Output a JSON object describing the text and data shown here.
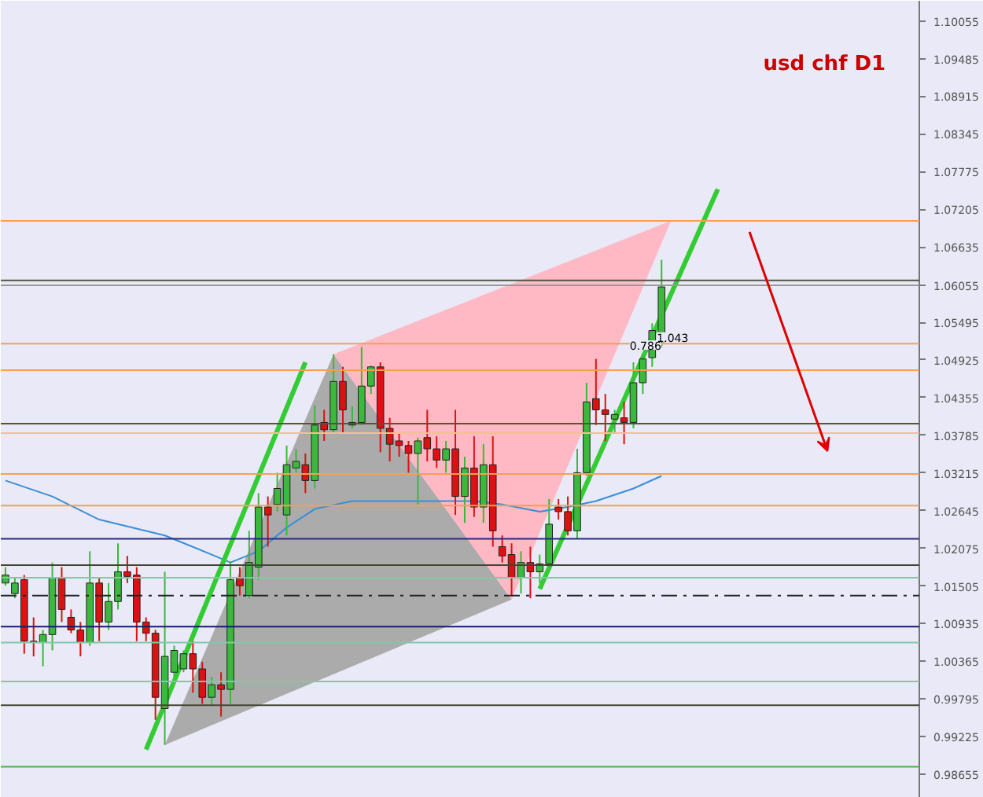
{
  "chart_data": {
    "type": "candlestick",
    "title": "usd chf D1",
    "categories": [
      null,
      null,
      null,
      null,
      null,
      null,
      null,
      null,
      null,
      null,
      null,
      null,
      null,
      null,
      null,
      null,
      null,
      null,
      null,
      null,
      null,
      null,
      null,
      null,
      null,
      null,
      null,
      null,
      null,
      null,
      null,
      null,
      null,
      null,
      null,
      null,
      null,
      null,
      null,
      null,
      null,
      null,
      null,
      null,
      null,
      null,
      null,
      null,
      null,
      null,
      null,
      null,
      null,
      null,
      null,
      null,
      null,
      null,
      null,
      null,
      null,
      null,
      null,
      null,
      null,
      null,
      null,
      null,
      null,
      null,
      null,
      null,
      null,
      null,
      null,
      null,
      null,
      null,
      null,
      null,
      null,
      null,
      null,
      null,
      null,
      null,
      null,
      null,
      null,
      null,
      null,
      null,
      null,
      null,
      null,
      null,
      null,
      null
    ],
    "ohlc": [
      [
        1.0155,
        1.0179,
        1.0151,
        1.0167
      ],
      [
        1.0139,
        1.0163,
        1.0132,
        1.0155
      ],
      [
        1.016,
        1.0167,
        1.0048,
        1.0067
      ],
      [
        1.0067,
        1.0103,
        1.0044,
        1.0065
      ],
      [
        1.0065,
        1.0084,
        1.0029,
        1.0077
      ],
      [
        1.0077,
        1.0186,
        1.0053,
        1.0163
      ],
      [
        1.0163,
        1.0179,
        1.0096,
        1.0115
      ],
      [
        1.0103,
        1.0115,
        1.0079,
        1.0084
      ],
      [
        1.0084,
        1.0096,
        1.0044,
        1.0065
      ],
      [
        1.0065,
        1.0203,
        1.006,
        1.0155
      ],
      [
        1.0155,
        1.0163,
        1.0067,
        1.0096
      ],
      [
        1.0096,
        1.0155,
        1.0084,
        1.0127
      ],
      [
        1.0127,
        1.0215,
        1.0115,
        1.0172
      ],
      [
        1.0172,
        1.0196,
        1.0155,
        1.0165
      ],
      [
        1.0167,
        1.0179,
        1.0067,
        1.0096
      ],
      [
        1.0096,
        1.0103,
        1.0067,
        1.0079
      ],
      [
        1.0079,
        1.0084,
        0.9948,
        0.9982
      ],
      [
        0.9965,
        1.0172,
        0.991,
        1.0044
      ],
      [
        1.002,
        1.006,
        1.0013,
        1.0053
      ],
      [
        1.0025,
        1.0053,
        1.002,
        1.0048
      ],
      [
        1.0048,
        1.0067,
        0.9989,
        1.0025
      ],
      [
        1.0025,
        1.0036,
        0.9972,
        0.9982
      ],
      [
        0.9982,
        1.0013,
        0.997,
        1.0001
      ],
      [
        1.0001,
        1.002,
        0.9953,
        0.9994
      ],
      [
        0.9994,
        1.0186,
        0.9972,
        1.016
      ],
      [
        1.0163,
        1.0179,
        1.0136,
        1.0151
      ],
      [
        1.0136,
        1.0234,
        1.0132,
        1.0186
      ],
      [
        1.0179,
        1.0291,
        1.016,
        1.027
      ],
      [
        1.027,
        1.0286,
        1.021,
        1.0258
      ],
      [
        1.0274,
        1.0322,
        1.0263,
        1.0298
      ],
      [
        1.0258,
        1.0363,
        1.0227,
        1.0334
      ],
      [
        1.0329,
        1.0358,
        1.0322,
        1.0339
      ],
      [
        1.0334,
        1.0351,
        1.0291,
        1.031
      ],
      [
        1.031,
        1.0424,
        1.0298,
        1.0394
      ],
      [
        1.0398,
        1.0417,
        1.037,
        1.0387
      ],
      [
        1.0387,
        1.0501,
        1.0382,
        1.046
      ],
      [
        1.046,
        1.0482,
        1.0382,
        1.0417
      ],
      [
        1.0394,
        1.0422,
        1.0389,
        1.0398
      ],
      [
        1.0398,
        1.0512,
        1.0394,
        1.0453
      ],
      [
        1.0453,
        1.0484,
        1.0441,
        1.0482
      ],
      [
        1.0482,
        1.0489,
        1.0353,
        1.0389
      ],
      [
        1.0389,
        1.0405,
        1.0339,
        1.0365
      ],
      [
        1.037,
        1.0382,
        1.0346,
        1.0363
      ],
      [
        1.0363,
        1.037,
        1.0322,
        1.0351
      ],
      [
        1.0351,
        1.0375,
        1.0274,
        1.037
      ],
      [
        1.0375,
        1.0417,
        1.0339,
        1.0358
      ],
      [
        1.0358,
        1.0377,
        1.0329,
        1.0341
      ],
      [
        1.0341,
        1.037,
        1.0322,
        1.0358
      ],
      [
        1.0358,
        1.0417,
        1.0258,
        1.0286
      ],
      [
        1.0286,
        1.0346,
        1.0246,
        1.0329
      ],
      [
        1.0329,
        1.0377,
        1.0255,
        1.027
      ],
      [
        1.027,
        1.0365,
        1.0246,
        1.0334
      ],
      [
        1.0334,
        1.0377,
        1.021,
        1.0234
      ],
      [
        1.021,
        1.0227,
        1.0186,
        1.0196
      ],
      [
        1.0198,
        1.0215,
        1.0136,
        1.0163
      ],
      [
        1.0163,
        1.0203,
        1.0139,
        1.0186
      ],
      [
        1.0186,
        1.021,
        1.0132,
        1.0172
      ],
      [
        1.0172,
        1.0198,
        1.0155,
        1.0184
      ],
      [
        1.0184,
        1.0282,
        1.0179,
        1.0244
      ],
      [
        1.027,
        1.0282,
        1.0251,
        1.0263
      ],
      [
        1.0263,
        1.0286,
        1.0227,
        1.0234
      ],
      [
        1.0234,
        1.0358,
        1.0222,
        1.0322
      ],
      [
        1.0322,
        1.0458,
        1.0317,
        1.0429
      ],
      [
        1.0434,
        1.0494,
        1.0394,
        1.0417
      ],
      [
        1.0417,
        1.0441,
        1.037,
        1.041
      ],
      [
        1.0403,
        1.0417,
        1.0382,
        1.041
      ],
      [
        1.0405,
        1.0429,
        1.0365,
        1.0398
      ],
      [
        1.0398,
        1.0489,
        1.0389,
        1.0458
      ],
      [
        1.0458,
        1.0501,
        1.0441,
        1.0494
      ],
      [
        1.0496,
        1.0548,
        1.0482,
        1.0537
      ],
      [
        1.052,
        1.0644,
        1.0512,
        1.0603
      ],
      null,
      null,
      null,
      null,
      null,
      null,
      null,
      null,
      null,
      null,
      null,
      null,
      null,
      null,
      null,
      null,
      null,
      null,
      null,
      null,
      null,
      null,
      null,
      null,
      null,
      null,
      null
    ],
    "colors": [
      "#3cb83c",
      "#3cb83c",
      "#dd1111",
      "#dd1111",
      "#3cb83c",
      "#3cb83c",
      "#dd1111",
      "#dd1111",
      "#dd1111",
      "#3cb83c",
      "#dd1111",
      "#3cb83c",
      "#3cb83c",
      "#dd1111",
      "#dd1111",
      "#dd1111",
      "#dd1111",
      "#3cb83c",
      "#3cb83c",
      "#3cb83c",
      "#dd1111",
      "#dd1111",
      "#3cb83c",
      "#dd1111",
      "#3cb83c",
      "#dd1111",
      "#3cb83c",
      "#3cb83c",
      "#dd1111",
      "#3cb83c",
      "#3cb83c",
      "#3cb83c",
      "#dd1111",
      "#3cb83c",
      "#dd1111",
      "#3cb83c",
      "#dd1111",
      "#3cb83c",
      "#3cb83c",
      "#3cb83c",
      "#dd1111",
      "#dd1111",
      "#dd1111",
      "#dd1111",
      "#3cb83c",
      "#dd1111",
      "#dd1111",
      "#3cb83c",
      "#dd1111",
      "#3cb83c",
      "#dd1111",
      "#3cb83c",
      "#dd1111",
      "#dd1111",
      "#dd1111",
      "#3cb83c",
      "#dd1111",
      "#3cb83c",
      "#3cb83c",
      "#dd1111",
      "#dd1111",
      "#3cb83c",
      "#3cb83c",
      "#dd1111",
      "#dd1111",
      "#3cb83c",
      "#dd1111",
      "#3cb83c",
      "#3cb83c",
      "#3cb83c",
      "#3cb83c",
      null,
      null,
      null,
      null,
      null,
      null,
      null,
      null,
      null,
      null,
      null,
      null,
      null,
      null,
      null,
      null,
      null,
      null,
      null,
      null,
      null,
      null,
      null,
      null,
      null,
      null,
      null
    ],
    "series": [
      {
        "type": "area",
        "color": "#a8a8a8",
        "values": [
          null,
          null,
          null,
          null,
          null,
          null,
          null,
          null,
          null,
          null,
          null,
          null,
          null,
          null,
          null,
          null,
          null,
          0.991,
          null,
          null,
          null,
          null,
          null,
          null,
          null,
          null,
          null,
          null,
          null,
          null,
          null,
          null,
          null,
          null,
          null,
          1.0501,
          null,
          null,
          null,
          null,
          null,
          null,
          null,
          null,
          null,
          null,
          null,
          null,
          null,
          null,
          null,
          null,
          null,
          null,
          1.013,
          null,
          null,
          null,
          null,
          null,
          null,
          null,
          null,
          null,
          null,
          null,
          null,
          null,
          null,
          null,
          null,
          null,
          null,
          null,
          null,
          null,
          null,
          null,
          null,
          null,
          null,
          null,
          null,
          null,
          null,
          null,
          null,
          null,
          null,
          null,
          null,
          null,
          null,
          null,
          null,
          null,
          null,
          null
        ]
      },
      {
        "type": "area",
        "color": "#ffb6c1",
        "values": [
          null,
          null,
          null,
          null,
          null,
          null,
          null,
          null,
          null,
          null,
          null,
          null,
          null,
          null,
          null,
          null,
          null,
          null,
          null,
          null,
          null,
          null,
          null,
          null,
          null,
          null,
          null,
          null,
          null,
          null,
          null,
          null,
          null,
          null,
          null,
          1.0501,
          null,
          null,
          null,
          null,
          null,
          null,
          null,
          null,
          null,
          null,
          null,
          null,
          null,
          null,
          null,
          null,
          null,
          null,
          1.013,
          null,
          null,
          null,
          null,
          null,
          null,
          null,
          null,
          null,
          null,
          null,
          null,
          null,
          null,
          null,
          null,
          1.0703,
          null,
          null,
          null,
          null,
          null,
          null,
          null,
          null,
          null,
          null,
          null,
          null,
          null,
          null,
          null,
          null,
          null,
          null,
          null,
          null,
          null,
          null,
          null,
          null,
          null,
          null
        ]
      },
      {
        "type": "line",
        "color": "#3a8fd8",
        "values": [
          1.031,
          null,
          null,
          null,
          null,
          1.0286,
          null,
          null,
          null,
          null,
          1.0251,
          null,
          null,
          null,
          null,
          null,
          null,
          1.0227,
          null,
          null,
          null,
          null,
          1.0198,
          null,
          1.0186,
          null,
          null,
          1.0203,
          null,
          null,
          1.0239,
          null,
          null,
          1.0267,
          null,
          null,
          null,
          1.0279,
          null,
          null,
          1.0279,
          null,
          null,
          1.0279,
          null,
          null,
          null,
          1.0279,
          null,
          null,
          1.0279,
          null,
          null,
          1.0274,
          null,
          null,
          null,
          1.0263,
          null,
          null,
          1.027,
          null,
          null,
          1.0279,
          null,
          null,
          null,
          1.0298,
          null,
          null,
          1.0317,
          null,
          null,
          null,
          null,
          null,
          null,
          null,
          null,
          null,
          null,
          null,
          null,
          null,
          null,
          null,
          null,
          null,
          null,
          null,
          null,
          null,
          null,
          null,
          null,
          null,
          null,
          null
        ]
      },
      {
        "type": "line",
        "color": "#33cc33",
        "values": [
          null,
          null,
          null,
          null,
          null,
          null,
          null,
          null,
          null,
          null,
          null,
          null,
          null,
          null,
          null,
          0.9903,
          null,
          null,
          null,
          null,
          null,
          null,
          null,
          null,
          null,
          null,
          null,
          null,
          null,
          null,
          null,
          null,
          1.0489,
          null,
          null,
          null,
          null,
          null,
          null,
          null,
          null,
          null,
          null,
          null,
          null,
          null,
          null,
          null,
          null,
          null,
          null,
          null,
          null,
          null,
          null,
          null,
          null,
          null,
          null,
          null,
          null,
          null,
          null,
          null,
          null,
          null,
          null,
          null,
          null,
          null,
          null,
          null,
          null,
          null,
          null,
          null,
          null,
          null,
          null,
          null,
          null,
          null,
          null,
          null,
          null,
          null,
          null,
          null,
          null,
          null,
          null,
          null,
          null,
          null,
          null,
          null,
          null,
          null
        ]
      },
      {
        "type": "line",
        "color": "#33cc33",
        "values": [
          null,
          null,
          null,
          null,
          null,
          null,
          null,
          null,
          null,
          null,
          null,
          null,
          null,
          null,
          null,
          null,
          null,
          null,
          null,
          null,
          null,
          null,
          null,
          null,
          null,
          null,
          null,
          null,
          null,
          null,
          null,
          null,
          null,
          null,
          null,
          null,
          null,
          null,
          null,
          null,
          null,
          null,
          null,
          null,
          null,
          null,
          null,
          null,
          null,
          null,
          null,
          null,
          null,
          null,
          null,
          null,
          null,
          1.0146,
          null,
          null,
          null,
          null,
          null,
          null,
          null,
          null,
          null,
          null,
          null,
          null,
          null,
          null,
          null,
          null,
          null,
          null,
          1.0751,
          null,
          null,
          null,
          null,
          null,
          null,
          null,
          null,
          null,
          null,
          null,
          null,
          null,
          null,
          null,
          null,
          null,
          null,
          null,
          null,
          null
        ]
      }
    ],
    "ylim": [
      0.983,
      1.1036
    ],
    "yticks": [
      1.10055,
      1.09485,
      1.08915,
      1.08345,
      1.07775,
      1.07205,
      1.06635,
      1.06055,
      1.05495,
      1.04925,
      1.04355,
      1.03785,
      1.03215,
      1.02645,
      1.02075,
      1.01505,
      1.00935,
      1.00365,
      0.99795,
      0.99225,
      0.98655
    ],
    "tick_labels": "y",
    "grid": false,
    "annotations": [
      "0.786",
      "1.043"
    ],
    "ref_lines": [
      {
        "axis": "y",
        "value": 1.0703,
        "color": "#f5a050"
      },
      {
        "axis": "y",
        "value": 1.0613,
        "color": "#555544"
      },
      {
        "axis": "y",
        "value": 1.06055,
        "color": "#999999"
      },
      {
        "axis": "y",
        "value": 1.0517,
        "color": "#f5a050"
      },
      {
        "axis": "y",
        "value": 1.0477,
        "color": "#f5a050"
      },
      {
        "axis": "y",
        "value": 1.0396,
        "color": "#555533"
      },
      {
        "axis": "y",
        "value": 1.0382,
        "color": "#f5c090"
      },
      {
        "axis": "y",
        "value": 1.032,
        "color": "#f5a050"
      },
      {
        "axis": "y",
        "value": 1.0272,
        "color": "#f5a050"
      },
      {
        "axis": "y",
        "value": 1.0222,
        "color": "#2a2a80"
      },
      {
        "axis": "y",
        "value": 1.0182,
        "color": "#444433"
      },
      {
        "axis": "y",
        "value": 1.0163,
        "color": "#80c8a8"
      },
      {
        "axis": "y",
        "value": 1.0136,
        "color": "#222222",
        "line_style": "dashed"
      },
      {
        "axis": "y",
        "value": 1.0089,
        "color": "#1a1a70"
      },
      {
        "axis": "y",
        "value": 1.0065,
        "color": "#80c8a8"
      },
      {
        "axis": "y",
        "value": 1.0006,
        "color": "#80c8a8"
      },
      {
        "axis": "y",
        "value": 0.997,
        "color": "#444433"
      },
      {
        "axis": "y",
        "value": 0.9877,
        "color": "#50b050"
      }
    ]
  }
}
